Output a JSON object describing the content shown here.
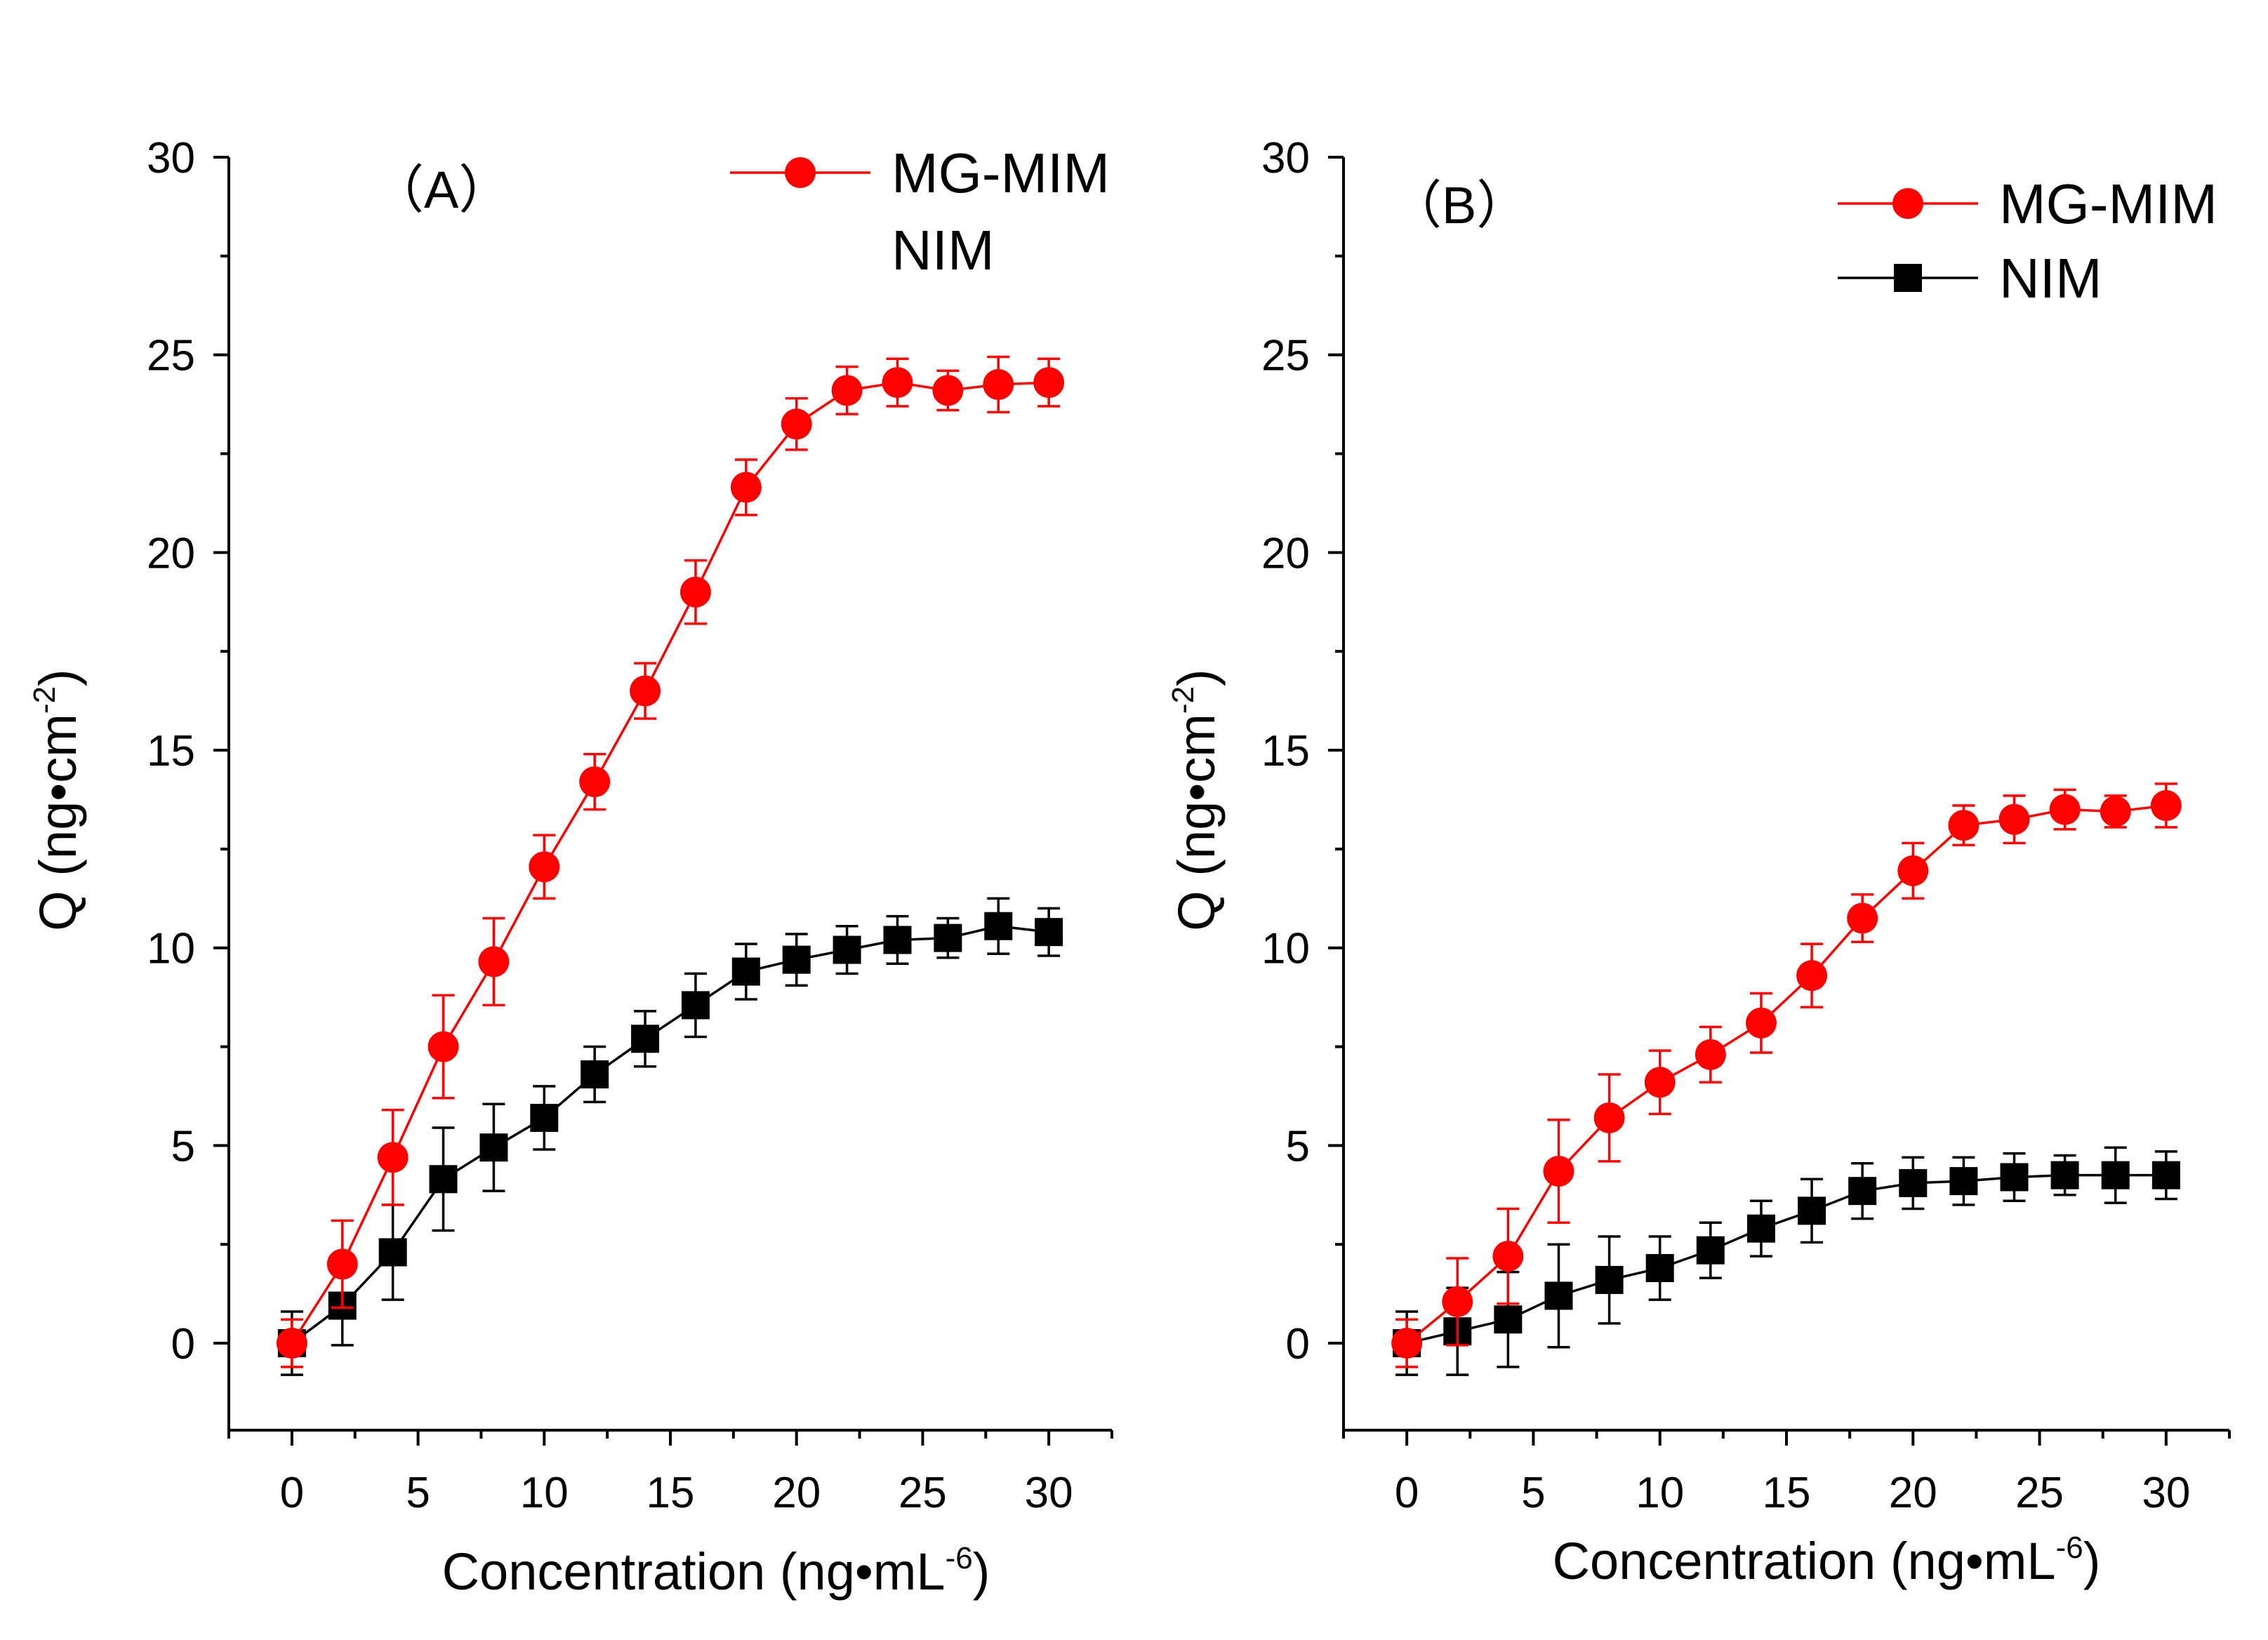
{
  "chart_data": [
    {
      "type": "line",
      "panel_label": "（A）",
      "xlabel": {
        "main": "Concentration (ng",
        "dot": "•",
        "unit": "mL",
        "sup": "-6",
        "close": ")"
      },
      "ylabel": {
        "main": "Q (ng",
        "dot": "•",
        "unit": "cm",
        "sup": "-2",
        "close": ")"
      },
      "xlim": [
        -2.5,
        32.5
      ],
      "ylim": [
        -2.2,
        30
      ],
      "xticks": [
        0,
        5,
        10,
        15,
        20,
        25,
        30
      ],
      "yticks": [
        0,
        5,
        10,
        15,
        20,
        25,
        30
      ],
      "legend_position": "top-right",
      "x": [
        0,
        2,
        4,
        6,
        8,
        10,
        12,
        14,
        16,
        18,
        20,
        22,
        24,
        26,
        28,
        30
      ],
      "series": [
        {
          "name": "MG-MIM",
          "color": "#ff0000",
          "marker": "circle",
          "show_legend_marker": true,
          "values": [
            0,
            2.0,
            4.7,
            7.5,
            9.65,
            12.05,
            14.2,
            16.5,
            19.0,
            21.65,
            23.25,
            24.1,
            24.3,
            24.1,
            24.25,
            24.3
          ],
          "errors": [
            0.6,
            1.1,
            1.2,
            1.3,
            1.1,
            0.8,
            0.7,
            0.7,
            0.8,
            0.7,
            0.65,
            0.6,
            0.6,
            0.5,
            0.7,
            0.6
          ]
        },
        {
          "name": "NIM",
          "color": "#000000",
          "marker": "square",
          "show_legend_marker": false,
          "values": [
            0,
            0.95,
            2.3,
            4.15,
            4.95,
            5.7,
            6.8,
            7.7,
            8.55,
            9.4,
            9.7,
            9.95,
            10.2,
            10.25,
            10.55,
            10.4
          ],
          "errors": [
            0.8,
            1.0,
            1.2,
            1.3,
            1.1,
            0.8,
            0.7,
            0.7,
            0.8,
            0.7,
            0.65,
            0.6,
            0.6,
            0.5,
            0.7,
            0.6
          ]
        }
      ]
    },
    {
      "type": "line",
      "panel_label": "（B）",
      "xlabel": {
        "main": "Concentration (ng",
        "dot": "•",
        "unit": "mL",
        "sup": "-6",
        "close": ")"
      },
      "ylabel": {
        "main": "Q (ng",
        "dot": "•",
        "unit": "cm",
        "sup": "-2",
        "close": ")"
      },
      "xlim": [
        -2.5,
        32.5
      ],
      "ylim": [
        -2.2,
        30
      ],
      "xticks": [
        0,
        5,
        10,
        15,
        20,
        25,
        30
      ],
      "yticks": [
        0,
        5,
        10,
        15,
        20,
        25,
        30
      ],
      "legend_position": "top-right",
      "x": [
        0,
        2,
        4,
        6,
        8,
        10,
        12,
        14,
        16,
        18,
        20,
        22,
        24,
        26,
        28,
        30
      ],
      "series": [
        {
          "name": "MG-MIM",
          "color": "#ff0000",
          "marker": "circle",
          "show_legend_marker": true,
          "values": [
            0,
            1.05,
            2.2,
            4.35,
            5.7,
            6.6,
            7.3,
            8.1,
            9.3,
            10.75,
            11.95,
            13.1,
            13.25,
            13.5,
            13.45,
            13.6
          ],
          "errors": [
            0.6,
            1.1,
            1.2,
            1.3,
            1.1,
            0.8,
            0.7,
            0.75,
            0.8,
            0.6,
            0.7,
            0.5,
            0.6,
            0.5,
            0.4,
            0.55
          ]
        },
        {
          "name": "NIM",
          "color": "#000000",
          "marker": "square",
          "show_legend_marker": true,
          "values": [
            0,
            0.3,
            0.6,
            1.2,
            1.6,
            1.9,
            2.35,
            2.9,
            3.35,
            3.85,
            4.05,
            4.1,
            4.2,
            4.25,
            4.25,
            4.25
          ],
          "errors": [
            0.8,
            1.1,
            1.2,
            1.3,
            1.1,
            0.8,
            0.7,
            0.7,
            0.8,
            0.7,
            0.65,
            0.6,
            0.6,
            0.5,
            0.7,
            0.6
          ]
        }
      ]
    }
  ]
}
